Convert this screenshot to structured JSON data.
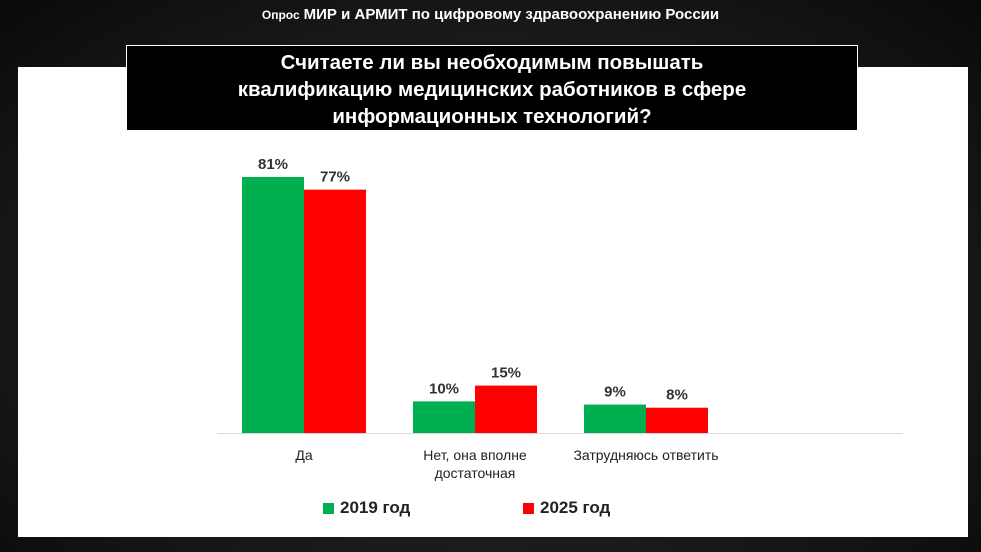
{
  "header": {
    "prefix": "Опрос",
    "title": "МИР и АРМИТ по цифровому здравоохранению России"
  },
  "question": {
    "line1": "Считаете ли вы необходимым повышать",
    "line2": "квалификацию медицинских работников в сфере",
    "line3": "информационных технологий?"
  },
  "colors": {
    "series_2019": "#00b050",
    "series_2025": "#ff0000"
  },
  "legend": {
    "item1": "2019 год",
    "item2": "2025 год"
  },
  "chart_data": {
    "type": "bar",
    "title": "Считаете ли вы необходимым повышать квалификацию медицинских работников в сфере информационных технологий?",
    "categories": [
      [
        "Да"
      ],
      [
        "Нет, она вполне",
        "достаточная"
      ],
      [
        "Затрудняюсь ответить"
      ]
    ],
    "series": [
      {
        "name": "2019 год",
        "color": "#00b050",
        "values": [
          81,
          10,
          9
        ],
        "labels": [
          "81%",
          "10%",
          "9%"
        ]
      },
      {
        "name": "2025 год",
        "color": "#ff0000",
        "values": [
          77,
          15,
          8
        ],
        "labels": [
          "77%",
          "15%",
          "8%"
        ]
      }
    ],
    "unit": "%",
    "ylim": [
      0,
      85
    ],
    "grid": false,
    "legend_position": "bottom"
  }
}
